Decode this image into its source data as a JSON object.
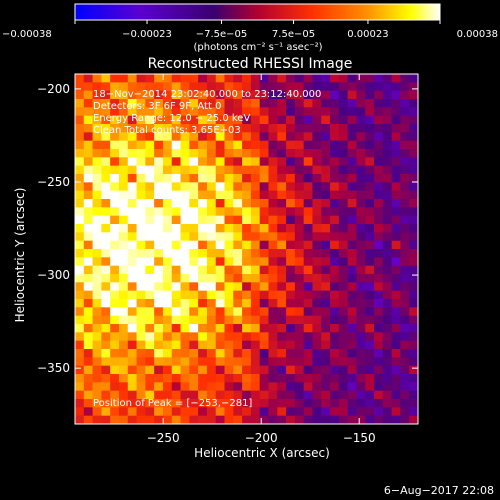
{
  "chart_data": {
    "type": "heatmap",
    "title": "Reconstructed RHESSI Image",
    "xlabel": "Heliocentric X (arcsec)",
    "ylabel": "Heliocentric Y (arcsec)",
    "xlim": [
      -295,
      -120
    ],
    "ylim": [
      -380,
      -192
    ],
    "x_ticks": [
      -250,
      -200,
      -150
    ],
    "y_ticks": [
      -200,
      -250,
      -300,
      -350
    ],
    "x_tick_labels": [
      "−250",
      "−200",
      "−150"
    ],
    "y_tick_labels": [
      "−200",
      "−250",
      "−300",
      "−350"
    ],
    "colorbar": {
      "min": -0.00038,
      "max": 0.00038,
      "ticks": [
        -0.00038,
        -0.00023,
        -7.5e-05,
        7.5e-05,
        0.00023,
        0.00038
      ],
      "tick_labels": [
        "−0.00038",
        "−0.00023",
        "−7.5e−05",
        "7.5e−05",
        "0.00023",
        "0.00038"
      ],
      "units": "(photons cm⁻² s⁻¹ asec⁻²)",
      "colormap": [
        "#0000ff",
        "#6a00c8",
        "#4b0082",
        "#b0003c",
        "#ff3000",
        "#ff9000",
        "#ffff00",
        "#ffffff"
      ]
    },
    "info_lines": [
      "18−Nov−2014 23:02:40.000 to 23:12:40.000",
      "Detectors: 3F 6F 9F, Att 0",
      "Energy Range: 12.0 − 25.0 keV",
      "Clean    Total counts: 3.65E+03"
    ],
    "peak_label": "Position of Peak = [−253,−281]",
    "peak": [
      -253,
      -281
    ],
    "grid": false
  },
  "footer": {
    "date": "6−Aug−2017 22:08"
  }
}
